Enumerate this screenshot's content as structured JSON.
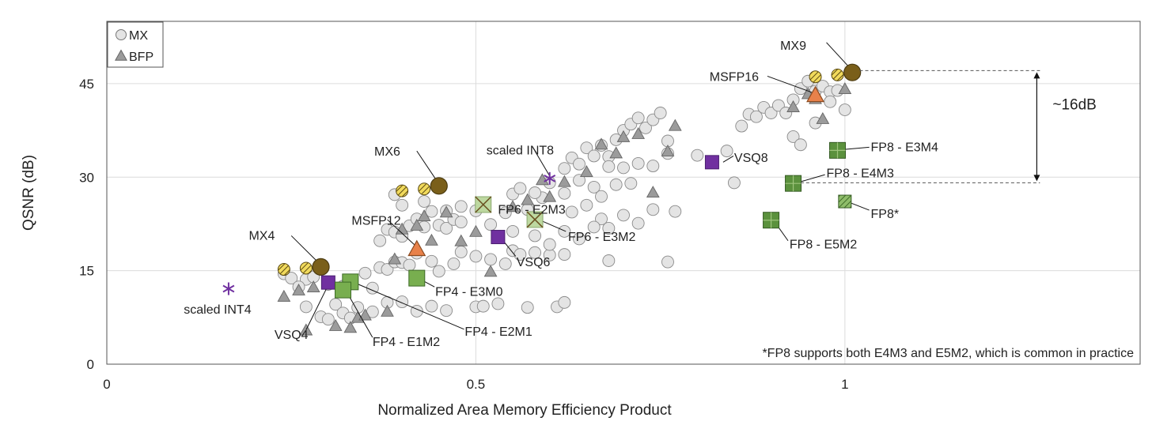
{
  "chart_data": {
    "type": "scatter",
    "xlabel": "Normalized Area Memory Efficiency Product",
    "ylabel": "QSNR (dB)",
    "xlim": [
      0,
      1.4
    ],
    "ylim": [
      0,
      55
    ],
    "xticks": [
      {
        "value": 0,
        "label": "0"
      },
      {
        "value": 0.5,
        "label": "0.5"
      },
      {
        "value": 1,
        "label": "1"
      }
    ],
    "yticks": [
      {
        "value": 0,
        "label": "0"
      },
      {
        "value": 15,
        "label": "15"
      },
      {
        "value": 30,
        "label": "30"
      },
      {
        "value": 45,
        "label": "45"
      }
    ],
    "grid": true,
    "legend_position": "top-left",
    "legend": [
      {
        "label": "MX",
        "marker": "circle"
      },
      {
        "label": "BFP",
        "marker": "triangle"
      }
    ],
    "footnote": "*FP8 supports both E4M3 and E5M2, which is common in practice",
    "colors": {
      "background_point": "#e4e4e4",
      "bfp_point": "#9b9b9b",
      "mx_highlight": "#7a5f1a",
      "mx_hatched": "#f1da5c",
      "msfp": "#e8814a",
      "fp4": "#78ae4f",
      "fp6": "#bdd8a0",
      "fp8": "#5b913d",
      "vsq": "#7030a0",
      "int": "#7030a0"
    },
    "background_mx": [
      [
        0.24,
        14.5
      ],
      [
        0.25,
        13.8
      ],
      [
        0.27,
        13.6
      ],
      [
        0.28,
        14
      ],
      [
        0.26,
        12.4
      ],
      [
        0.3,
        12.8
      ],
      [
        0.27,
        9.2
      ],
      [
        0.29,
        7.6
      ],
      [
        0.3,
        7.2
      ],
      [
        0.31,
        9.6
      ],
      [
        0.32,
        8.2
      ],
      [
        0.33,
        7.4
      ],
      [
        0.34,
        9.1
      ],
      [
        0.36,
        8.4
      ],
      [
        0.38,
        9.9
      ],
      [
        0.4,
        10
      ],
      [
        0.42,
        8.5
      ],
      [
        0.44,
        9.3
      ],
      [
        0.46,
        8.6
      ],
      [
        0.5,
        9.2
      ],
      [
        0.51,
        9.3
      ],
      [
        0.53,
        9.7
      ],
      [
        0.57,
        9.1
      ],
      [
        0.61,
        9.2
      ],
      [
        0.62,
        9.9
      ],
      [
        0.32,
        12.5
      ],
      [
        0.35,
        14.6
      ],
      [
        0.36,
        12.2
      ],
      [
        0.37,
        15.5
      ],
      [
        0.38,
        15.2
      ],
      [
        0.39,
        16.4
      ],
      [
        0.4,
        16.3
      ],
      [
        0.41,
        15.9
      ],
      [
        0.42,
        17.8
      ],
      [
        0.44,
        16.5
      ],
      [
        0.45,
        14.9
      ],
      [
        0.47,
        16.1
      ],
      [
        0.48,
        18
      ],
      [
        0.5,
        17.3
      ],
      [
        0.52,
        16.8
      ],
      [
        0.54,
        16.1
      ],
      [
        0.55,
        18.2
      ],
      [
        0.56,
        17.6
      ],
      [
        0.58,
        17.9
      ],
      [
        0.6,
        17.5
      ],
      [
        0.37,
        19.8
      ],
      [
        0.38,
        21.6
      ],
      [
        0.39,
        21.2
      ],
      [
        0.4,
        20.5
      ],
      [
        0.41,
        22.2
      ],
      [
        0.42,
        23.3
      ],
      [
        0.43,
        22
      ],
      [
        0.44,
        24.5
      ],
      [
        0.45,
        22.3
      ],
      [
        0.46,
        21.8
      ],
      [
        0.47,
        23.2
      ],
      [
        0.48,
        22.8
      ],
      [
        0.5,
        24.6
      ],
      [
        0.52,
        22.4
      ],
      [
        0.54,
        24.3
      ],
      [
        0.55,
        21.3
      ],
      [
        0.57,
        24.8
      ],
      [
        0.59,
        26.7
      ],
      [
        0.39,
        27.2
      ],
      [
        0.4,
        25.5
      ],
      [
        0.43,
        26.1
      ],
      [
        0.46,
        24.6
      ],
      [
        0.48,
        25.3
      ],
      [
        0.55,
        27.3
      ],
      [
        0.56,
        28.2
      ],
      [
        0.58,
        27.5
      ],
      [
        0.6,
        29.1
      ],
      [
        0.62,
        27.4
      ],
      [
        0.64,
        29.5
      ],
      [
        0.66,
        28.4
      ],
      [
        0.67,
        26.9
      ],
      [
        0.69,
        28.8
      ],
      [
        0.71,
        29
      ],
      [
        0.62,
        31.4
      ],
      [
        0.63,
        33.1
      ],
      [
        0.64,
        32.1
      ],
      [
        0.65,
        34.7
      ],
      [
        0.66,
        33.4
      ],
      [
        0.67,
        35.1
      ],
      [
        0.68,
        33.3
      ],
      [
        0.69,
        36
      ],
      [
        0.7,
        37.5
      ],
      [
        0.71,
        38.5
      ],
      [
        0.72,
        39.5
      ],
      [
        0.73,
        37.9
      ],
      [
        0.74,
        39.2
      ],
      [
        0.75,
        40.3
      ],
      [
        0.76,
        35.8
      ],
      [
        0.68,
        31.7
      ],
      [
        0.7,
        31.5
      ],
      [
        0.72,
        32.2
      ],
      [
        0.74,
        31.8
      ],
      [
        0.76,
        33.8
      ],
      [
        0.63,
        24.4
      ],
      [
        0.65,
        25.5
      ],
      [
        0.67,
        23.3
      ],
      [
        0.68,
        21.8
      ],
      [
        0.7,
        23.9
      ],
      [
        0.72,
        22.6
      ],
      [
        0.74,
        24.8
      ],
      [
        0.58,
        20.6
      ],
      [
        0.6,
        19.2
      ],
      [
        0.62,
        21.3
      ],
      [
        0.64,
        20.1
      ],
      [
        0.66,
        22
      ],
      [
        0.68,
        16.6
      ],
      [
        0.76,
        16.4
      ],
      [
        0.62,
        17.6
      ],
      [
        0.77,
        24.5
      ],
      [
        0.8,
        33.5
      ],
      [
        0.84,
        34.2
      ],
      [
        0.85,
        29.1
      ],
      [
        0.86,
        38.2
      ],
      [
        0.87,
        40.1
      ],
      [
        0.88,
        39.7
      ],
      [
        0.89,
        41.2
      ],
      [
        0.9,
        40.3
      ],
      [
        0.91,
        41.5
      ],
      [
        0.92,
        40.3
      ],
      [
        0.93,
        42.4
      ],
      [
        0.94,
        44.2
      ],
      [
        0.95,
        45.4
      ],
      [
        0.96,
        43.8
      ],
      [
        0.97,
        44.6
      ],
      [
        0.98,
        43.7
      ],
      [
        0.93,
        36.5
      ],
      [
        0.94,
        35.2
      ],
      [
        0.96,
        38.7
      ],
      [
        0.98,
        42.1
      ],
      [
        0.99,
        43.9
      ],
      [
        1.0,
        40.8
      ]
    ],
    "background_bfp": [
      [
        0.24,
        10.8
      ],
      [
        0.26,
        11.8
      ],
      [
        0.27,
        5.4
      ],
      [
        0.28,
        12.3
      ],
      [
        0.31,
        6.1
      ],
      [
        0.33,
        5.8
      ],
      [
        0.34,
        7.4
      ],
      [
        0.35,
        7.8
      ],
      [
        0.38,
        8.4
      ],
      [
        0.39,
        16.8
      ],
      [
        0.4,
        21.6
      ],
      [
        0.42,
        22.2
      ],
      [
        0.43,
        23.7
      ],
      [
        0.44,
        19.8
      ],
      [
        0.46,
        24.3
      ],
      [
        0.48,
        19.7
      ],
      [
        0.5,
        21.2
      ],
      [
        0.52,
        14.8
      ],
      [
        0.55,
        25.2
      ],
      [
        0.57,
        26.3
      ],
      [
        0.59,
        29.5
      ],
      [
        0.6,
        26.8
      ],
      [
        0.62,
        29.2
      ],
      [
        0.65,
        30.8
      ],
      [
        0.67,
        35.2
      ],
      [
        0.69,
        33.8
      ],
      [
        0.7,
        36.4
      ],
      [
        0.72,
        36.9
      ],
      [
        0.74,
        27.5
      ],
      [
        0.76,
        34.1
      ],
      [
        0.77,
        38.2
      ],
      [
        0.93,
        41.2
      ],
      [
        0.95,
        43.3
      ],
      [
        0.96,
        42.5
      ],
      [
        0.97,
        39.3
      ],
      [
        1.0,
        44.1
      ]
    ],
    "highlighted": [
      {
        "name": "MX4",
        "marker": "circle-filled",
        "x": 0.29,
        "y": 15.6
      },
      {
        "name": "MX4-h1",
        "marker": "circle-hatched",
        "x": 0.24,
        "y": 15.2
      },
      {
        "name": "MX4-h2",
        "marker": "circle-hatched",
        "x": 0.27,
        "y": 15.4
      },
      {
        "name": "MX6",
        "marker": "circle-filled",
        "x": 0.45,
        "y": 28.6
      },
      {
        "name": "MX6-h1",
        "marker": "circle-hatched",
        "x": 0.4,
        "y": 27.8
      },
      {
        "name": "MX6-h2",
        "marker": "circle-hatched",
        "x": 0.43,
        "y": 28.1
      },
      {
        "name": "MX9",
        "marker": "circle-filled",
        "x": 1.01,
        "y": 46.8
      },
      {
        "name": "MX9-h1",
        "marker": "circle-hatched",
        "x": 0.96,
        "y": 46.1
      },
      {
        "name": "MX9-h2",
        "marker": "circle-hatched",
        "x": 0.99,
        "y": 46.4
      },
      {
        "name": "MSFP12",
        "marker": "triangle-orange",
        "x": 0.42,
        "y": 18.4
      },
      {
        "name": "MSFP16",
        "marker": "triangle-orange",
        "x": 0.96,
        "y": 43.1
      },
      {
        "name": "VSQ4",
        "marker": "square-purple",
        "x": 0.3,
        "y": 13.1
      },
      {
        "name": "VSQ6",
        "marker": "square-purple",
        "x": 0.53,
        "y": 20.4
      },
      {
        "name": "VSQ8",
        "marker": "square-purple",
        "x": 0.82,
        "y": 32.4
      },
      {
        "name": "scaled INT4",
        "marker": "star-purple",
        "x": 0.165,
        "y": 12.1
      },
      {
        "name": "scaled INT8",
        "marker": "star-purple",
        "x": 0.6,
        "y": 29.8
      },
      {
        "name": "FP4-E3M0",
        "marker": "square-fp4",
        "x": 0.42,
        "y": 13.8
      },
      {
        "name": "FP4-E2M1",
        "marker": "square-fp4",
        "x": 0.33,
        "y": 13.2
      },
      {
        "name": "FP4-E1M2",
        "marker": "square-fp4",
        "x": 0.32,
        "y": 11.9
      },
      {
        "name": "FP6-E2M3",
        "marker": "square-fp6",
        "x": 0.51,
        "y": 25.6
      },
      {
        "name": "FP6-E3M2",
        "marker": "square-fp6",
        "x": 0.58,
        "y": 23.2
      },
      {
        "name": "FP8-E3M4",
        "marker": "square-fp8",
        "x": 0.99,
        "y": 34.3
      },
      {
        "name": "FP8-E4M3",
        "marker": "square-fp8",
        "x": 0.93,
        "y": 29
      },
      {
        "name": "FP8-E5M2",
        "marker": "square-fp8",
        "x": 0.9,
        "y": 23.1
      },
      {
        "name": "FP8*",
        "marker": "square-fp8-hatched",
        "x": 1.0,
        "y": 26.1
      }
    ],
    "annotations": [
      {
        "text": "MX4",
        "x": 0.21,
        "y": 20.7,
        "anchor": "middle",
        "leader": [
          0.25,
          20.6,
          0.29,
          15.9
        ]
      },
      {
        "text": "MX6",
        "x": 0.38,
        "y": 34.2,
        "anchor": "middle",
        "leader": [
          0.42,
          34.2,
          0.45,
          28.9
        ]
      },
      {
        "text": "MX9",
        "x": 0.93,
        "y": 51.2,
        "anchor": "middle",
        "leader": [
          0.975,
          51.6,
          1.01,
          47.1
        ]
      },
      {
        "text": "MSFP12",
        "x": 0.365,
        "y": 23.1,
        "anchor": "middle",
        "leader": [
          0.38,
          23.2,
          0.42,
          18.8
        ]
      },
      {
        "text": "MSFP16",
        "x": 0.85,
        "y": 46.2,
        "anchor": "middle",
        "leader": [
          0.895,
          46.2,
          0.96,
          43.4
        ]
      },
      {
        "text": "scaled INT8",
        "x": 0.56,
        "y": 34.4,
        "anchor": "middle",
        "leader": [
          0.58,
          34.2,
          0.6,
          30.2
        ]
      },
      {
        "text": "VSQ8",
        "x": 0.85,
        "y": 33.2,
        "anchor": "start",
        "leader": [
          0.849,
          33.4,
          0.835,
          32.4
        ]
      },
      {
        "text": "VSQ6",
        "x": 0.555,
        "y": 16.5,
        "anchor": "start",
        "leader": [
          0.554,
          17.3,
          0.535,
          20.1
        ]
      },
      {
        "text": "FP6 - E2M3",
        "x": 0.53,
        "y": 24.9,
        "anchor": "start",
        "leader": [
          0.52,
          25.5,
          0.515,
          25.6
        ]
      },
      {
        "text": "FP6 - E3M2",
        "x": 0.625,
        "y": 20.5,
        "anchor": "start",
        "leader": [
          0.622,
          21.3,
          0.585,
          23.2
        ]
      },
      {
        "text": "FP4 - E3M0",
        "x": 0.445,
        "y": 11.7,
        "anchor": "start",
        "leader": [
          0.444,
          12.4,
          0.425,
          13.6
        ]
      },
      {
        "text": "FP4 - E2M1",
        "x": 0.485,
        "y": 5.3,
        "anchor": "start",
        "leader": [
          0.484,
          5.6,
          0.335,
          13.1
        ]
      },
      {
        "text": "FP4 - E1M2",
        "x": 0.36,
        "y": 3.7,
        "anchor": "start",
        "leader": [
          0.36,
          4.3,
          0.325,
          11.6
        ]
      },
      {
        "text": "VSQ4",
        "x": 0.25,
        "y": 4.8,
        "anchor": "middle",
        "leader": [
          0.27,
          5.5,
          0.3,
          12.7
        ]
      },
      {
        "text": "scaled INT4",
        "x": 0.15,
        "y": 8.9,
        "anchor": "middle",
        "leader": null
      },
      {
        "text": "FP8 - E3M4",
        "x": 1.035,
        "y": 34.9,
        "anchor": "start",
        "leader": [
          1.033,
          34.8,
          0.995,
          34.4
        ]
      },
      {
        "text": "FP8 - E4M3",
        "x": 0.975,
        "y": 30.7,
        "anchor": "start",
        "leader": [
          0.973,
          30.4,
          0.935,
          29.1
        ]
      },
      {
        "text": "FP8*",
        "x": 1.035,
        "y": 24.2,
        "anchor": "start",
        "leader": [
          1.033,
          24.7,
          1.005,
          26
        ]
      },
      {
        "text": "FP8 - E5M2",
        "x": 0.925,
        "y": 19.3,
        "anchor": "start",
        "leader": [
          0.923,
          19.8,
          0.905,
          22.8
        ]
      }
    ],
    "gap_annotation": {
      "text": "~16dB",
      "x": 1.26,
      "y_top": 47.1,
      "y_bottom": 29.1,
      "from_x_top": 1.02,
      "from_x_bottom": 0.94
    }
  }
}
